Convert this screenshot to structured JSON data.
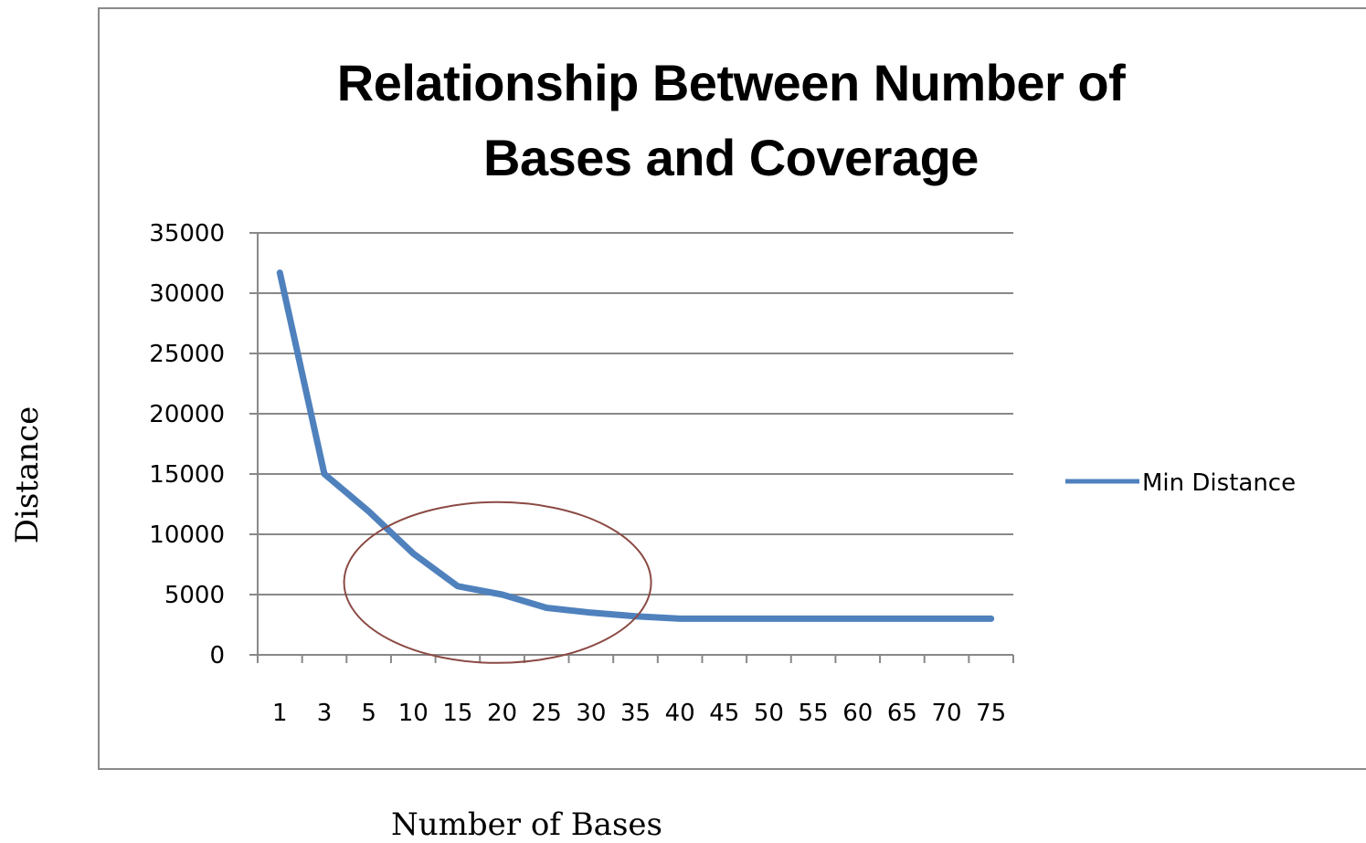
{
  "chart_data": {
    "type": "line",
    "title": "Relationship Between Number of Bases and Coverage",
    "xlabel": "Number of Bases",
    "ylabel": "Distance",
    "categories": [
      "1",
      "3",
      "5",
      "10",
      "15",
      "20",
      "25",
      "30",
      "35",
      "40",
      "45",
      "50",
      "55",
      "60",
      "65",
      "70",
      "75"
    ],
    "series": [
      {
        "name": "Min Distance",
        "color": "#4f81bd",
        "values": [
          31700,
          15000,
          11900,
          8400,
          5700,
          5000,
          3900,
          3500,
          3200,
          3000,
          3000,
          3000,
          3000,
          3000,
          3000,
          3000,
          3000
        ]
      }
    ],
    "ylim": [
      0,
      35000
    ],
    "yticks": [
      0,
      5000,
      10000,
      15000,
      20000,
      25000,
      30000,
      35000
    ],
    "grid": true,
    "legend_position": "right",
    "annotation": {
      "shape": "ellipse",
      "color": "#8b4a44",
      "x_center_category": "20",
      "y_center": 6000
    }
  }
}
